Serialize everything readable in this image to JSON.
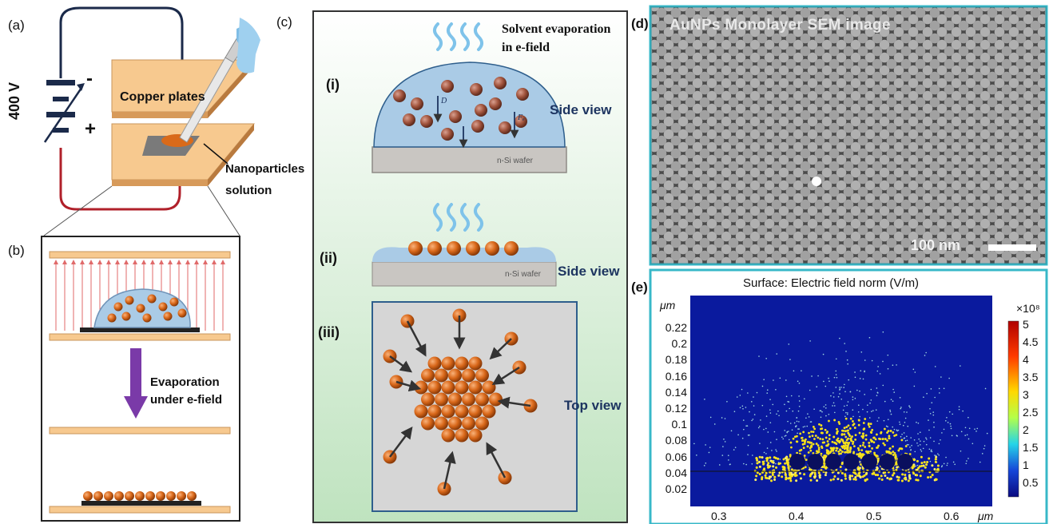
{
  "panels": {
    "a": {
      "label": "(a)",
      "voltage": "400 V",
      "minus": "-",
      "plus": "+",
      "copper_plates": "Copper plates",
      "nanoparticles": "Nanoparticles",
      "solution": "solution"
    },
    "b": {
      "label": "(b)",
      "evap_line1": "Evaporation",
      "evap_line2": "under e-field"
    },
    "c": {
      "label": "(c)",
      "solvent_line1": "Solvent evaporation",
      "solvent_line2": "in e-field",
      "stage_i": "(i)",
      "stage_ii": "(ii)",
      "stage_iii": "(iii)",
      "side_view_1": "Side view",
      "side_view_2": "Side view",
      "top_view": "Top view",
      "wafer_1": "n-Si wafer",
      "wafer_2": "n-Si wafer",
      "force_d": "D",
      "force_fe": "Fₑ"
    },
    "d": {
      "label": "(d)",
      "title": "AuNPs Monolayer SEM image",
      "scale": "100 nm"
    },
    "e": {
      "label": "(e)",
      "title": "Surface: Electric field norm (V/m)",
      "y_unit": "μm",
      "x_unit": "μm",
      "y_ticks": [
        "0.22",
        "0.2",
        "0.18",
        "0.16",
        "0.14",
        "0.12",
        "0.1",
        "0.08",
        "0.06",
        "0.04",
        "0.02"
      ],
      "x_ticks": [
        "0.3",
        "0.4",
        "0.5",
        "0.6"
      ],
      "colorbar_exp": "×10⁸",
      "colorbar_ticks": [
        "5",
        "4.5",
        "4",
        "3.5",
        "3",
        "2.5",
        "2",
        "1.5",
        "1",
        "0.5"
      ]
    }
  },
  "colors": {
    "copper": "#f7c98f",
    "nanoparticle": "#d96a1a",
    "wire_top": "#1b2a4a",
    "wire_bottom": "#b0202a",
    "arrow_purple": "#7a3aa8",
    "field_arrow": "#e06a6a",
    "droplet": "#aacbe6",
    "navy_text": "#1d3460"
  }
}
